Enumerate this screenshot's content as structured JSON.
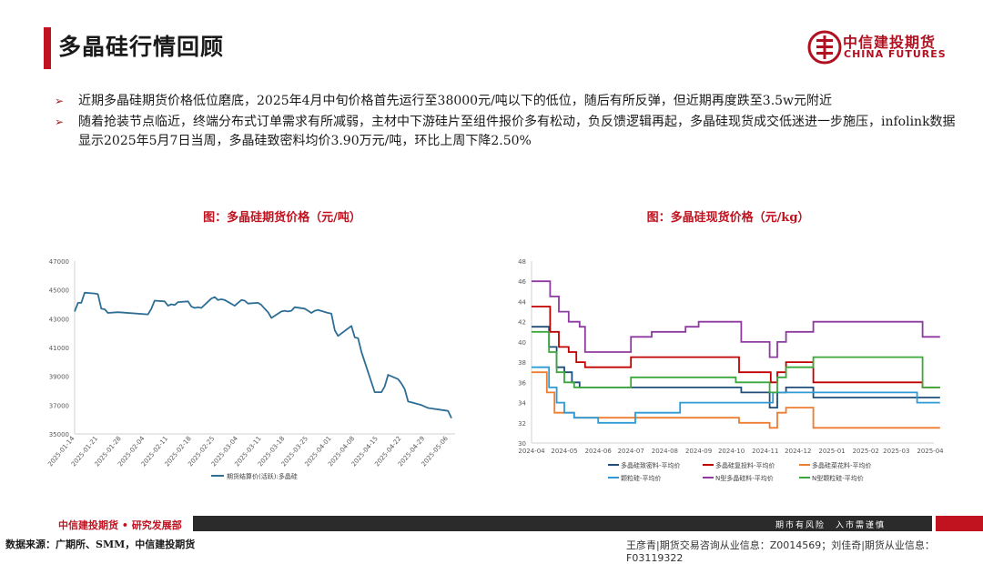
{
  "page": {
    "title": "多晶硅行情回顾",
    "logo_cn": "中信建投期货",
    "logo_en": "CHINA FUTURES"
  },
  "bullets": [
    "近期多晶硅期货价格低位磨底，2025年4月中旬价格首先运行至38000元/吨以下的低位，随后有所反弹，但近期再度跌至3.5w元附近",
    "随着抢装节点临近，终端分布式订单需求有所减弱，主材中下游硅片至组件报价多有松动，负反馈逻辑再起，多晶硅现货成交低迷进一步施压，infolink数据显示2025年5月7日当周，多晶硅致密料均价3.90万元/吨，环比上周下降2.50%"
  ],
  "footer": {
    "department": "中信建投期货 • 研究发展部",
    "risk_notice": "期市有风险　入市需谨慎",
    "source": "数据来源：广期所、SMM，中信建投期货",
    "analysts": "王彦青|期货交易咨询从业信息：Z0014569；刘佳奇|期货从业信息：F03119322"
  },
  "colors": {
    "brand_red": "#c1121f",
    "futures_line": "#2e6e95"
  },
  "chart_data": [
    {
      "type": "line",
      "title": "图：多晶硅期货价格（元/吨）",
      "ylim": [
        35000,
        47000
      ],
      "yticks": [
        "47000",
        "45000",
        "43000",
        "41000",
        "39000",
        "37000",
        "35000"
      ],
      "xticks": [
        "2025-01-14",
        "2025-01-21",
        "2025-01-28",
        "2025-02-04",
        "2025-02-11",
        "2025-02-18",
        "2025-02-25",
        "2025-03-04",
        "2025-03-11",
        "2025-03-18",
        "2025-03-25",
        "2025-04-01",
        "2025-04-08",
        "2025-04-15",
        "2025-04-22",
        "2025-04-29",
        "2025-05-06"
      ],
      "legend": [
        "期货结算价(活跃):多晶硅"
      ],
      "legend_position": "bottom",
      "series": [
        {
          "name": "期货结算价(活跃):多晶硅",
          "color": "#2e6e95",
          "x": [
            "2025-01-14",
            "2025-01-15",
            "2025-01-16",
            "2025-01-17",
            "2025-01-20",
            "2025-01-21",
            "2025-01-22",
            "2025-01-23",
            "2025-01-24",
            "2025-01-27",
            "2025-02-05",
            "2025-02-06",
            "2025-02-07",
            "2025-02-10",
            "2025-02-11",
            "2025-02-12",
            "2025-02-13",
            "2025-02-14",
            "2025-02-17",
            "2025-02-18",
            "2025-02-19",
            "2025-02-20",
            "2025-02-21",
            "2025-02-24",
            "2025-02-25",
            "2025-02-26",
            "2025-02-27",
            "2025-02-28",
            "2025-03-03",
            "2025-03-04",
            "2025-03-05",
            "2025-03-06",
            "2025-03-07",
            "2025-03-10",
            "2025-03-11",
            "2025-03-12",
            "2025-03-13",
            "2025-03-14",
            "2025-03-17",
            "2025-03-18",
            "2025-03-19",
            "2025-03-20",
            "2025-03-21",
            "2025-03-24",
            "2025-03-25",
            "2025-03-26",
            "2025-03-27",
            "2025-03-28",
            "2025-03-31",
            "2025-04-01",
            "2025-04-02",
            "2025-04-03",
            "2025-04-07",
            "2025-04-08",
            "2025-04-09",
            "2025-04-10",
            "2025-04-11",
            "2025-04-14",
            "2025-04-15",
            "2025-04-16",
            "2025-04-17",
            "2025-04-18",
            "2025-04-21",
            "2025-04-22",
            "2025-04-23",
            "2025-04-24",
            "2025-04-25",
            "2025-04-28",
            "2025-04-29",
            "2025-04-30",
            "2025-05-06",
            "2025-05-07"
          ],
          "values": [
            43500,
            44100,
            44100,
            44800,
            44750,
            44700,
            43700,
            43650,
            43400,
            43450,
            43300,
            43700,
            44250,
            44200,
            43900,
            44000,
            43950,
            44150,
            44200,
            43850,
            43750,
            43800,
            43750,
            44400,
            44500,
            44300,
            44350,
            44300,
            43900,
            44100,
            44300,
            44250,
            44050,
            44100,
            43950,
            43700,
            43450,
            43050,
            43500,
            43550,
            43500,
            43550,
            43800,
            43700,
            43550,
            43400,
            43550,
            43600,
            43400,
            43350,
            42200,
            41800,
            42500,
            41700,
            41650,
            40700,
            40000,
            37900,
            37900,
            37900,
            38300,
            39100,
            38800,
            38500,
            38100,
            37250,
            37200,
            37000,
            36900,
            36800,
            36600,
            36100
          ]
        }
      ]
    },
    {
      "type": "line",
      "title": "图：多晶硅现货价格（元/kg）",
      "ylim": [
        30,
        48
      ],
      "yticks": [
        "48",
        "46",
        "44",
        "42",
        "40",
        "38",
        "36",
        "34",
        "32",
        "30"
      ],
      "xticks": [
        "2024-04",
        "2024-05",
        "2024-06",
        "2024-07",
        "2024-08",
        "2024-09",
        "2024-10",
        "2024-11",
        "2024-12",
        "2025-01",
        "2025-02",
        "2025-03",
        "2025-04"
      ],
      "legend": [
        "多晶硅致密料-平均价",
        "多晶硅复投料-平均价",
        "多晶硅菜花料-平均价",
        "颗粒硅-平均价",
        "N型多晶硅料-平均价",
        "N型颗粒硅-平均价"
      ],
      "legend_position": "bottom",
      "series": [
        {
          "name": "多晶硅致密料-平均价",
          "color": "#1f4e79",
          "points": [
            [
              "2024-04-01",
              41.5
            ],
            [
              "2024-04-10",
              41.5
            ],
            [
              "2024-04-17",
              39.5
            ],
            [
              "2024-04-24",
              37.5
            ],
            [
              "2024-05-01",
              37.0
            ],
            [
              "2024-05-08",
              36.0
            ],
            [
              "2024-05-15",
              35.5
            ],
            [
              "2024-06-01",
              35.5
            ],
            [
              "2024-07-01",
              35.5
            ],
            [
              "2024-10-01",
              35.5
            ],
            [
              "2024-10-10",
              35.0
            ],
            [
              "2024-11-01",
              35.0
            ],
            [
              "2024-11-05",
              33.5
            ],
            [
              "2024-11-12",
              35.0
            ],
            [
              "2024-11-20",
              35.5
            ],
            [
              "2024-12-10",
              35.5
            ],
            [
              "2024-12-15",
              34.5
            ],
            [
              "2025-03-01",
              34.5
            ],
            [
              "2025-03-15",
              34.5
            ],
            [
              "2025-03-25",
              34.5
            ],
            [
              "2025-04-10",
              34.5
            ]
          ]
        },
        {
          "name": "多晶硅复投料-平均价",
          "color": "#c00000",
          "points": [
            [
              "2024-04-01",
              43.5
            ],
            [
              "2024-04-12",
              43.5
            ],
            [
              "2024-04-18",
              41.0
            ],
            [
              "2024-04-26",
              39.5
            ],
            [
              "2024-05-05",
              39.0
            ],
            [
              "2024-05-12",
              38.0
            ],
            [
              "2024-05-20",
              37.5
            ],
            [
              "2024-06-01",
              37.5
            ],
            [
              "2024-06-25",
              37.5
            ],
            [
              "2024-07-01",
              38.5
            ],
            [
              "2024-10-01",
              38.5
            ],
            [
              "2024-10-08",
              37.0
            ],
            [
              "2024-11-01",
              37.0
            ],
            [
              "2024-11-06",
              36.0
            ],
            [
              "2024-11-12",
              37.0
            ],
            [
              "2024-11-20",
              38.0
            ],
            [
              "2024-12-10",
              38.0
            ],
            [
              "2024-12-15",
              36.0
            ],
            [
              "2025-03-15",
              36.0
            ],
            [
              "2025-03-25",
              35.5
            ],
            [
              "2025-04-10",
              35.5
            ]
          ]
        },
        {
          "name": "多晶硅菜花料-平均价",
          "color": "#ed7d31",
          "points": [
            [
              "2024-04-01",
              37.0
            ],
            [
              "2024-04-10",
              37.0
            ],
            [
              "2024-04-15",
              35.0
            ],
            [
              "2024-04-22",
              33.0
            ],
            [
              "2024-05-01",
              33.0
            ],
            [
              "2024-05-10",
              32.5
            ],
            [
              "2024-06-01",
              32.5
            ],
            [
              "2024-10-01",
              32.5
            ],
            [
              "2024-10-08",
              32.0
            ],
            [
              "2024-11-01",
              32.0
            ],
            [
              "2024-11-05",
              31.5
            ],
            [
              "2024-11-12",
              33.0
            ],
            [
              "2024-11-20",
              33.5
            ],
            [
              "2024-12-10",
              33.5
            ],
            [
              "2024-12-15",
              31.5
            ],
            [
              "2025-04-10",
              31.5
            ]
          ]
        },
        {
          "name": "颗粒硅-平均价",
          "color": "#2e9bd6",
          "points": [
            [
              "2024-04-01",
              37.5
            ],
            [
              "2024-04-10",
              37.5
            ],
            [
              "2024-04-17",
              35.5
            ],
            [
              "2024-04-24",
              34.0
            ],
            [
              "2024-05-01",
              33.0
            ],
            [
              "2024-05-10",
              32.5
            ],
            [
              "2024-06-01",
              32.0
            ],
            [
              "2024-07-01",
              32.0
            ],
            [
              "2024-07-05",
              33.0
            ],
            [
              "2024-08-10",
              33.0
            ],
            [
              "2024-08-15",
              34.0
            ],
            [
              "2024-10-01",
              34.0
            ],
            [
              "2024-11-01",
              34.0
            ],
            [
              "2024-11-08",
              35.0
            ],
            [
              "2024-12-10",
              35.0
            ],
            [
              "2025-03-15",
              35.0
            ],
            [
              "2025-03-20",
              34.0
            ],
            [
              "2025-04-10",
              34.0
            ]
          ]
        },
        {
          "name": "N型多晶硅料-平均价",
          "color": "#8e3ba0",
          "points": [
            [
              "2024-04-01",
              46.0
            ],
            [
              "2024-04-12",
              46.0
            ],
            [
              "2024-04-18",
              44.5
            ],
            [
              "2024-04-26",
              43.0
            ],
            [
              "2024-05-05",
              42.0
            ],
            [
              "2024-05-15",
              41.5
            ],
            [
              "2024-05-20",
              39.0
            ],
            [
              "2024-06-01",
              39.0
            ],
            [
              "2024-06-25",
              39.0
            ],
            [
              "2024-07-01",
              40.5
            ],
            [
              "2024-07-15",
              40.5
            ],
            [
              "2024-07-20",
              41.0
            ],
            [
              "2024-08-15",
              41.0
            ],
            [
              "2024-08-20",
              41.5
            ],
            [
              "2024-09-01",
              42.0
            ],
            [
              "2024-10-05",
              42.0
            ],
            [
              "2024-10-10",
              40.0
            ],
            [
              "2024-11-01",
              40.0
            ],
            [
              "2024-11-05",
              38.5
            ],
            [
              "2024-11-12",
              40.0
            ],
            [
              "2024-11-20",
              41.0
            ],
            [
              "2024-12-10",
              41.0
            ],
            [
              "2024-12-15",
              42.0
            ],
            [
              "2025-03-15",
              42.0
            ],
            [
              "2025-03-25",
              40.5
            ],
            [
              "2025-04-10",
              40.5
            ]
          ]
        },
        {
          "name": "N型颗粒硅-平均价",
          "color": "#3aa83a",
          "points": [
            [
              "2024-04-01",
              41.0
            ],
            [
              "2024-04-10",
              41.0
            ],
            [
              "2024-04-17",
              39.0
            ],
            [
              "2024-04-24",
              37.0
            ],
            [
              "2024-05-01",
              36.0
            ],
            [
              "2024-05-10",
              35.5
            ],
            [
              "2024-06-01",
              35.5
            ],
            [
              "2024-06-25",
              35.5
            ],
            [
              "2024-07-01",
              36.5
            ],
            [
              "2024-10-01",
              36.5
            ],
            [
              "2024-10-05",
              36.0
            ],
            [
              "2024-11-01",
              36.0
            ],
            [
              "2024-11-05",
              35.0
            ],
            [
              "2024-11-12",
              36.5
            ],
            [
              "2024-11-20",
              37.5
            ],
            [
              "2024-12-10",
              37.5
            ],
            [
              "2024-12-15",
              38.5
            ],
            [
              "2025-03-15",
              38.5
            ],
            [
              "2025-03-25",
              35.5
            ],
            [
              "2025-04-10",
              35.5
            ]
          ]
        }
      ]
    }
  ]
}
